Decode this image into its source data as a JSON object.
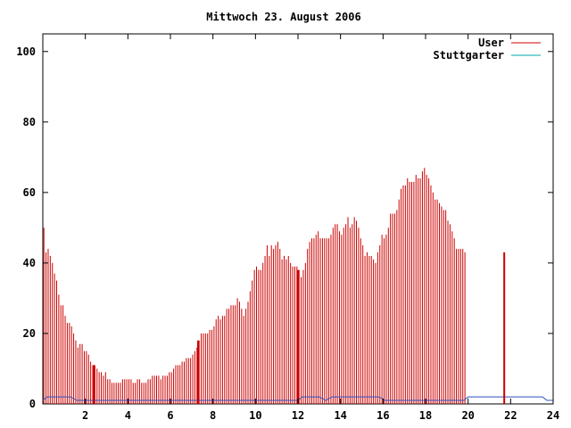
{
  "chart_data": {
    "type": "bar",
    "title": "Mittwoch 23. August 2006",
    "xlim": [
      0,
      24
    ],
    "ylim": [
      0,
      105
    ],
    "x_ticks": [
      2,
      4,
      6,
      8,
      10,
      12,
      14,
      16,
      18,
      20,
      22,
      24
    ],
    "y_ticks": [
      0,
      20,
      40,
      60,
      80,
      100
    ],
    "grid": false,
    "legend_position": "top-right",
    "series": [
      {
        "name": "User",
        "color": "#cc0000",
        "style": "impulses",
        "step_hours": 0.1,
        "values": [
          50,
          43,
          44,
          42,
          40,
          37,
          35,
          31,
          28,
          28,
          25,
          23,
          23,
          22,
          20,
          18,
          16,
          17,
          17,
          15,
          15,
          14,
          12,
          11,
          11,
          10,
          9,
          9,
          8,
          9,
          7,
          7,
          6,
          6,
          6,
          6,
          6,
          7,
          7,
          7,
          7,
          7,
          6,
          6,
          7,
          7,
          6,
          6,
          6,
          7,
          7,
          8,
          8,
          8,
          8,
          7,
          8,
          8,
          8,
          9,
          9,
          10,
          11,
          11,
          11,
          12,
          12,
          13,
          13,
          13,
          14,
          15,
          16,
          18,
          20,
          20,
          20,
          20,
          21,
          21,
          22,
          24,
          25,
          24,
          25,
          25,
          27,
          27,
          28,
          28,
          28,
          30,
          29,
          27,
          25,
          27,
          29,
          32,
          35,
          38,
          39,
          38,
          38,
          40,
          42,
          45,
          42,
          45,
          44,
          45,
          46,
          44,
          41,
          42,
          41,
          42,
          40,
          39,
          39,
          39,
          38,
          36,
          38,
          40,
          44,
          46,
          47,
          47,
          48,
          49,
          47,
          47,
          47,
          47,
          47,
          48,
          50,
          51,
          51,
          49,
          48,
          50,
          51,
          53,
          50,
          51,
          53,
          52,
          50,
          47,
          45,
          42,
          43,
          42,
          42,
          41,
          40,
          43,
          45,
          48,
          47,
          48,
          50,
          54,
          54,
          54,
          55,
          58,
          61,
          62,
          62,
          64,
          63,
          63,
          63,
          65,
          64,
          64,
          66,
          67,
          65,
          64,
          62,
          60,
          58,
          58,
          57,
          56,
          55,
          55,
          52,
          51,
          49,
          47,
          44,
          44,
          44,
          44,
          43
        ]
      },
      {
        "name": "Stuttgarter",
        "color": "#00aaaa",
        "style": "lines",
        "points": [
          [
            0,
            1
          ],
          [
            0.2,
            2
          ],
          [
            1.3,
            2
          ],
          [
            1.6,
            1
          ],
          [
            2.0,
            1
          ],
          [
            9.8,
            1
          ],
          [
            10.0,
            1
          ],
          [
            12.0,
            1
          ],
          [
            12.2,
            2
          ],
          [
            13.0,
            2
          ],
          [
            13.3,
            1
          ],
          [
            13.6,
            2
          ],
          [
            15.8,
            2
          ],
          [
            16.1,
            1
          ],
          [
            17.0,
            1
          ],
          [
            19.8,
            1
          ],
          [
            20.0,
            2
          ],
          [
            23.5,
            2
          ],
          [
            23.7,
            1
          ],
          [
            24.0,
            1
          ]
        ]
      }
    ],
    "highlight_hours": [
      2.4,
      7.3,
      12.0,
      21.7
    ]
  }
}
